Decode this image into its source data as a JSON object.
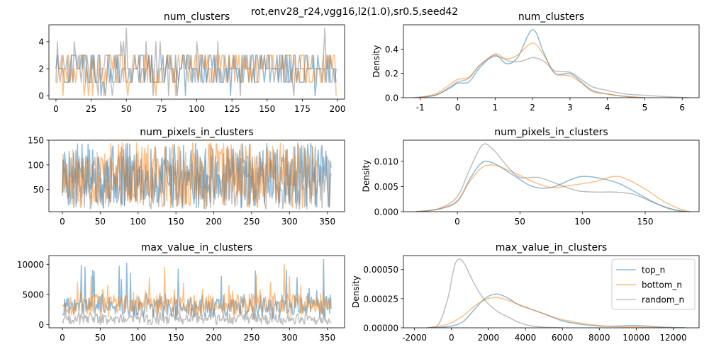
{
  "figure": {
    "suptitle": "rot,env28_r24,vgg16,l2(1.0),sr0.5,seed42"
  },
  "colors": {
    "top_n": "#1f77b4",
    "bottom_n": "#ff7f0e",
    "random_n": "#7f7f7f"
  },
  "chart_data": [
    {
      "id": "ts_num_clusters",
      "type": "line",
      "title": "num_clusters",
      "xlabel": "",
      "ylabel": "",
      "xlim": [
        -5,
        205
      ],
      "ylim": [
        -0.25,
        5.25
      ],
      "xticks": [
        0,
        25,
        50,
        75,
        100,
        125,
        150,
        175,
        200
      ],
      "yticks": [
        0,
        2,
        4
      ],
      "n": 200,
      "series": [
        {
          "name": "top_n",
          "color_key": "top_n",
          "generator": "int",
          "seed": 11,
          "min": 0,
          "max": 4,
          "center": 2,
          "sd": 0.9
        },
        {
          "name": "bottom_n",
          "color_key": "bottom_n",
          "generator": "int",
          "seed": 23,
          "min": 0,
          "max": 4,
          "center": 2,
          "sd": 0.9
        },
        {
          "name": "random_n",
          "color_key": "random_n",
          "generator": "int",
          "seed": 37,
          "min": 0,
          "max": 5,
          "center": 2,
          "sd": 0.8,
          "spikes": [
            [
              50,
              5
            ],
            [
              191,
              5
            ],
            [
              48,
              4
            ],
            [
              100,
              4
            ],
            [
              115,
              4
            ]
          ]
        }
      ]
    },
    {
      "id": "kde_num_clusters",
      "type": "line",
      "title": "num_clusters",
      "xlabel": "",
      "ylabel": "Density",
      "xlim": [
        -1.45,
        6.45
      ],
      "ylim": [
        0,
        0.6
      ],
      "xticks": [
        -1,
        0,
        1,
        2,
        3,
        4,
        5,
        6
      ],
      "yticks": [
        0.0,
        0.2,
        0.4
      ],
      "ytick_labels": [
        "0.0",
        "0.2",
        "0.4"
      ],
      "series": [
        {
          "name": "top_n",
          "color_key": "top_n",
          "points": [
            [
              -1.1,
              0
            ],
            [
              -0.6,
              0.02
            ],
            [
              -0.2,
              0.08
            ],
            [
              0,
              0.12
            ],
            [
              0.3,
              0.13
            ],
            [
              0.6,
              0.25
            ],
            [
              1.0,
              0.35
            ],
            [
              1.3,
              0.28
            ],
            [
              1.6,
              0.33
            ],
            [
              2.0,
              0.56
            ],
            [
              2.3,
              0.37
            ],
            [
              2.6,
              0.2
            ],
            [
              3.0,
              0.2
            ],
            [
              3.3,
              0.13
            ],
            [
              3.6,
              0.06
            ],
            [
              4.0,
              0.03
            ],
            [
              4.5,
              0.01
            ],
            [
              5.0,
              0
            ]
          ]
        },
        {
          "name": "bottom_n",
          "color_key": "bottom_n",
          "points": [
            [
              -1.1,
              0
            ],
            [
              -0.6,
              0.03
            ],
            [
              -0.2,
              0.11
            ],
            [
              0,
              0.15
            ],
            [
              0.3,
              0.17
            ],
            [
              0.6,
              0.27
            ],
            [
              1.0,
              0.36
            ],
            [
              1.3,
              0.32
            ],
            [
              1.6,
              0.35
            ],
            [
              2.0,
              0.45
            ],
            [
              2.3,
              0.35
            ],
            [
              2.6,
              0.2
            ],
            [
              3.0,
              0.18
            ],
            [
              3.3,
              0.12
            ],
            [
              3.6,
              0.05
            ],
            [
              4.0,
              0.03
            ],
            [
              4.5,
              0.01
            ],
            [
              5.0,
              0
            ]
          ]
        },
        {
          "name": "random_n",
          "color_key": "random_n",
          "points": [
            [
              -1.2,
              0
            ],
            [
              -0.6,
              0.02
            ],
            [
              -0.2,
              0.09
            ],
            [
              0,
              0.13
            ],
            [
              0.3,
              0.16
            ],
            [
              0.6,
              0.27
            ],
            [
              1.0,
              0.34
            ],
            [
              1.4,
              0.3
            ],
            [
              1.7,
              0.3
            ],
            [
              2.0,
              0.33
            ],
            [
              2.3,
              0.3
            ],
            [
              2.6,
              0.22
            ],
            [
              3.0,
              0.21
            ],
            [
              3.3,
              0.15
            ],
            [
              3.6,
              0.09
            ],
            [
              4.0,
              0.06
            ],
            [
              4.5,
              0.03
            ],
            [
              5.0,
              0.02
            ],
            [
              5.5,
              0.01
            ],
            [
              6.2,
              0
            ]
          ]
        }
      ]
    },
    {
      "id": "ts_num_pixels",
      "type": "line",
      "title": "num_pixels_in_clusters",
      "xlabel": "",
      "ylabel": "",
      "xlim": [
        -17.75,
        372.75
      ],
      "ylim": [
        5,
        150
      ],
      "xticks": [
        0,
        50,
        100,
        150,
        200,
        250,
        300,
        350
      ],
      "yticks": [
        50,
        100,
        150
      ],
      "n": 356,
      "series": [
        {
          "name": "top_n",
          "color_key": "top_n",
          "generator": "uniform",
          "seed": 5,
          "min": 12,
          "max": 145
        },
        {
          "name": "bottom_n",
          "color_key": "bottom_n",
          "generator": "uniform",
          "seed": 17,
          "min": 12,
          "max": 145,
          "n": 338
        },
        {
          "name": "random_n",
          "color_key": "random_n",
          "generator": "uniform",
          "seed": 29,
          "min": 10,
          "max": 120,
          "n": 356
        }
      ]
    },
    {
      "id": "kde_num_pixels",
      "type": "line",
      "title": "num_pixels_in_clusters",
      "xlabel": "",
      "ylabel": "Density",
      "xlim": [
        -43,
        193
      ],
      "ylim": [
        0,
        0.0142
      ],
      "xticks": [
        0,
        50,
        100,
        150
      ],
      "yticks": [
        0.0,
        0.005,
        0.01
      ],
      "ytick_labels": [
        "0.000",
        "0.005",
        "0.010"
      ],
      "series": [
        {
          "name": "top_n",
          "color_key": "top_n",
          "points": [
            [
              -33,
              0
            ],
            [
              -15,
              0.0005
            ],
            [
              0,
              0.002
            ],
            [
              10,
              0.0065
            ],
            [
              20,
              0.0098
            ],
            [
              30,
              0.0095
            ],
            [
              45,
              0.0072
            ],
            [
              60,
              0.005
            ],
            [
              75,
              0.0048
            ],
            [
              90,
              0.0063
            ],
            [
              100,
              0.007
            ],
            [
              115,
              0.0066
            ],
            [
              130,
              0.0055
            ],
            [
              145,
              0.0035
            ],
            [
              160,
              0.0015
            ],
            [
              175,
              0.0003
            ],
            [
              185,
              0
            ]
          ]
        },
        {
          "name": "bottom_n",
          "color_key": "bottom_n",
          "points": [
            [
              -33,
              0
            ],
            [
              -15,
              0.0005
            ],
            [
              0,
              0.0022
            ],
            [
              10,
              0.006
            ],
            [
              20,
              0.0088
            ],
            [
              30,
              0.0092
            ],
            [
              45,
              0.0078
            ],
            [
              60,
              0.006
            ],
            [
              75,
              0.0048
            ],
            [
              90,
              0.0052
            ],
            [
              110,
              0.006
            ],
            [
              125,
              0.007
            ],
            [
              135,
              0.0065
            ],
            [
              150,
              0.0045
            ],
            [
              165,
              0.002
            ],
            [
              178,
              0.0005
            ],
            [
              186,
              0
            ]
          ]
        },
        {
          "name": "random_n",
          "color_key": "random_n",
          "points": [
            [
              -33,
              0
            ],
            [
              -15,
              0.0006
            ],
            [
              0,
              0.003
            ],
            [
              10,
              0.0085
            ],
            [
              20,
              0.0132
            ],
            [
              28,
              0.0125
            ],
            [
              40,
              0.009
            ],
            [
              50,
              0.0068
            ],
            [
              65,
              0.0068
            ],
            [
              80,
              0.0055
            ],
            [
              95,
              0.0042
            ],
            [
              110,
              0.0039
            ],
            [
              125,
              0.0039
            ],
            [
              140,
              0.0035
            ],
            [
              155,
              0.002
            ],
            [
              170,
              0.0005
            ],
            [
              183,
              0
            ]
          ]
        }
      ]
    },
    {
      "id": "ts_max_value",
      "type": "line",
      "title": "max_value_in_clusters",
      "xlabel": "",
      "ylabel": "",
      "xlim": [
        -17.75,
        372.75
      ],
      "ylim": [
        -550,
        11450
      ],
      "xticks": [
        0,
        50,
        100,
        150,
        200,
        250,
        300,
        350
      ],
      "yticks": [
        0,
        5000,
        10000
      ],
      "n": 356,
      "series": [
        {
          "name": "top_n",
          "color_key": "top_n",
          "generator": "skew",
          "seed": 41,
          "base": 2500,
          "spread": 1600,
          "spikes": [
            [
              25,
              9800
            ],
            [
              30,
              9500
            ],
            [
              40,
              9000
            ],
            [
              42,
              8800
            ],
            [
              75,
              9700
            ],
            [
              78,
              7500
            ],
            [
              85,
              10200
            ],
            [
              90,
              8500
            ],
            [
              153,
              9200
            ],
            [
              210,
              8000
            ],
            [
              255,
              8900
            ],
            [
              296,
              9000
            ],
            [
              310,
              7800
            ],
            [
              345,
              10800
            ]
          ]
        },
        {
          "name": "bottom_n",
          "color_key": "bottom_n",
          "generator": "skew",
          "seed": 53,
          "base": 2800,
          "spread": 1700,
          "spikes": [
            [
              20,
              7000
            ],
            [
              38,
              8000
            ],
            [
              60,
              6500
            ],
            [
              115,
              7800
            ],
            [
              135,
              9500
            ],
            [
              160,
              6800
            ],
            [
              220,
              6500
            ],
            [
              256,
              8200
            ],
            [
              275,
              7000
            ],
            [
              293,
              10000
            ],
            [
              300,
              8000
            ],
            [
              315,
              6500
            ]
          ]
        },
        {
          "name": "random_n",
          "color_key": "random_n",
          "generator": "skew",
          "seed": 67,
          "base": 700,
          "spread": 800,
          "spikes": [
            [
              4,
              3500
            ],
            [
              95,
              3000
            ],
            [
              120,
              2500
            ],
            [
              150,
              2800
            ],
            [
              170,
              2700
            ],
            [
              200,
              2500
            ],
            [
              235,
              3200
            ],
            [
              278,
              2900
            ],
            [
              345,
              2600
            ]
          ]
        }
      ]
    },
    {
      "id": "kde_max_value",
      "type": "line",
      "title": "max_value_in_clusters",
      "xlabel": "",
      "ylabel": "Density",
      "xlim": [
        -2600,
        13400
      ],
      "ylim": [
        0,
        0.00062
      ],
      "xticks": [
        -2000,
        0,
        2000,
        4000,
        6000,
        8000,
        10000,
        12000
      ],
      "yticks": [
        0.0,
        0.00025,
        0.0005
      ],
      "ytick_labels": [
        "0.00000",
        "0.00025",
        "0.00050"
      ],
      "legend": {
        "position": "top-right",
        "entries": [
          "top_n",
          "bottom_n",
          "random_n"
        ]
      },
      "series": [
        {
          "name": "top_n",
          "color_key": "top_n",
          "points": [
            [
              -1300,
              0
            ],
            [
              -200,
              1e-05
            ],
            [
              600,
              5e-05
            ],
            [
              1200,
              0.00015
            ],
            [
              1800,
              0.00025
            ],
            [
              2400,
              0.00029
            ],
            [
              3000,
              0.00026
            ],
            [
              3600,
              0.0002
            ],
            [
              4300,
              0.00016
            ],
            [
              5000,
              0.00012
            ],
            [
              6000,
              6e-05
            ],
            [
              7000,
              3e-05
            ],
            [
              8000,
              1.5e-05
            ],
            [
              9000,
              1.5e-05
            ],
            [
              10000,
              2e-05
            ],
            [
              11000,
              1e-05
            ],
            [
              12000,
              3e-06
            ],
            [
              12700,
              0
            ]
          ]
        },
        {
          "name": "bottom_n",
          "color_key": "bottom_n",
          "points": [
            [
              -1300,
              0
            ],
            [
              -200,
              3e-05
            ],
            [
              600,
              0.0001
            ],
            [
              1200,
              0.00018
            ],
            [
              1800,
              0.00024
            ],
            [
              2400,
              0.00026
            ],
            [
              3000,
              0.00024
            ],
            [
              3800,
              0.00019
            ],
            [
              4500,
              0.00015
            ],
            [
              5200,
              0.00011
            ],
            [
              6000,
              7e-05
            ],
            [
              7000,
              4e-05
            ],
            [
              8000,
              2e-05
            ],
            [
              9000,
              1e-05
            ],
            [
              10000,
              8e-06
            ],
            [
              11000,
              3e-06
            ],
            [
              12000,
              0
            ]
          ]
        },
        {
          "name": "random_n",
          "color_key": "random_n",
          "points": [
            [
              -1300,
              0
            ],
            [
              -700,
              3e-05
            ],
            [
              -200,
              0.00025
            ],
            [
              150,
              0.00052
            ],
            [
              400,
              0.00059
            ],
            [
              700,
              0.00055
            ],
            [
              1100,
              0.00042
            ],
            [
              1600,
              0.00028
            ],
            [
              2100,
              0.00019
            ],
            [
              2600,
              0.00013
            ],
            [
              3100,
              9e-05
            ],
            [
              3600,
              5e-05
            ],
            [
              4200,
              2e-05
            ],
            [
              5000,
              5e-06
            ],
            [
              6000,
              0
            ]
          ]
        }
      ]
    }
  ]
}
